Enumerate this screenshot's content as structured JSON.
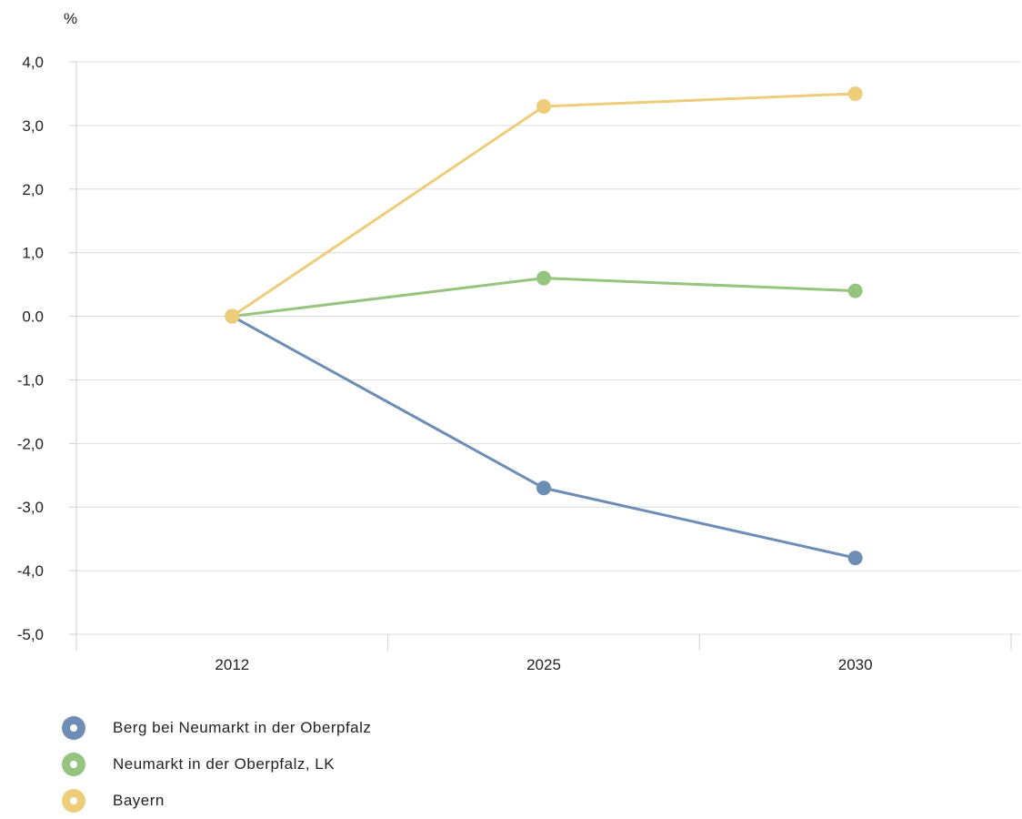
{
  "chart_data": {
    "type": "line",
    "ylabel": "%",
    "categories": [
      "2012",
      "2025",
      "2030"
    ],
    "ylim": [
      -5.0,
      4.0
    ],
    "yticks": [
      "4,0",
      "3,0",
      "2,0",
      "1,0",
      "0.0",
      "-1,0",
      "-2,0",
      "-3,0",
      "-4,0",
      "-5,0"
    ],
    "ytick_values": [
      4,
      3,
      2,
      1,
      0,
      -1,
      -2,
      -3,
      -4,
      -5
    ],
    "grid": true,
    "legend_position": "bottom-left",
    "series": [
      {
        "name": "Berg bei Neumarkt in der Oberpfalz",
        "color": "#6d8db4",
        "values": [
          0.0,
          -2.7,
          -3.8
        ]
      },
      {
        "name": "Neumarkt in der Oberpfalz, LK",
        "color": "#95c47f",
        "values": [
          0.0,
          0.6,
          0.4
        ]
      },
      {
        "name": "Bayern",
        "color": "#edcd79",
        "values": [
          0.0,
          3.3,
          3.5
        ]
      }
    ]
  }
}
